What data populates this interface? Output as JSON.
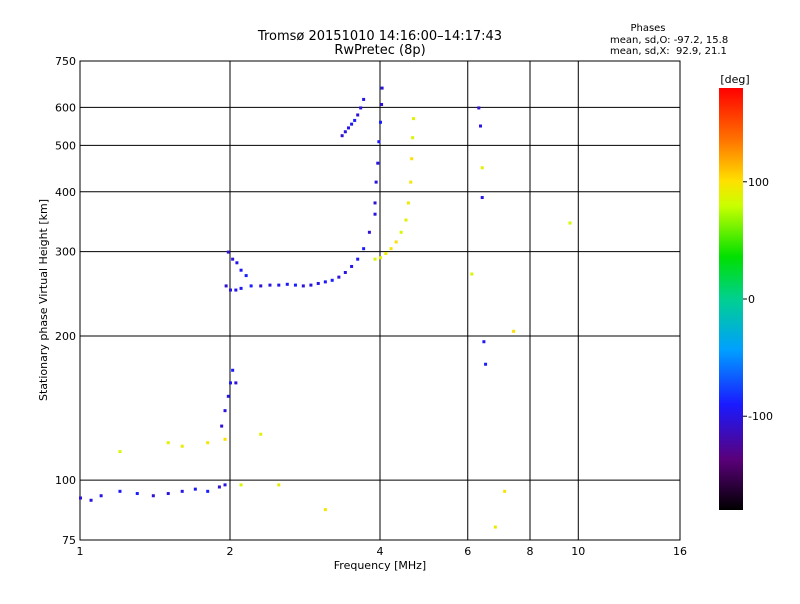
{
  "chart_data": {
    "type": "scatter",
    "title": "Tromsø 20151010 14:16:00–14:17:43",
    "subtitle": "RwPretec (8p)",
    "xlabel": "Frequency [MHz]",
    "ylabel": "Stationary phase Virtual Height [km]",
    "x_scale": "log",
    "y_scale": "log",
    "xlim": [
      1,
      16
    ],
    "ylim": [
      75,
      750
    ],
    "x_ticks": [
      1,
      2,
      4,
      6,
      8,
      10,
      16
    ],
    "y_ticks": [
      75,
      100,
      200,
      300,
      400,
      500,
      600,
      750
    ],
    "grid": true,
    "stats": {
      "heading": "Phases",
      "line_o": "mean, sd,O: -97.2, 15.8",
      "line_x": "mean, sd,X:  92.9, 21.1"
    },
    "colorbar": {
      "label": "[deg]",
      "range": [
        -180,
        180
      ],
      "ticks": [
        100,
        0,
        -100
      ],
      "colormap": "rainbow"
    },
    "series": [
      {
        "mode": "O",
        "phase_deg": -97,
        "traces": [
          {
            "x": [
              1.0,
              1.05,
              1.1,
              1.2,
              1.3,
              1.4,
              1.5,
              1.6,
              1.7,
              1.8,
              1.9,
              1.95
            ],
            "y": [
              92,
              91,
              93,
              95,
              94,
              93,
              94,
              95,
              96,
              95,
              97,
              98
            ]
          },
          {
            "x": [
              1.92,
              1.95,
              1.98,
              2.0,
              2.02,
              2.05
            ],
            "y": [
              130,
              140,
              150,
              160,
              170,
              160
            ]
          },
          {
            "x": [
              1.96,
              2.0,
              2.05,
              2.1,
              2.2,
              2.3,
              2.4,
              2.5,
              2.6,
              2.7,
              2.8,
              2.9,
              3.0,
              3.1,
              3.2,
              3.3,
              3.4,
              3.5,
              3.6,
              3.7,
              3.8,
              3.9
            ],
            "y": [
              255,
              250,
              250,
              252,
              255,
              255,
              256,
              256,
              257,
              256,
              255,
              256,
              258,
              260,
              262,
              266,
              272,
              280,
              290,
              305,
              330,
              360
            ]
          },
          {
            "x": [
              1.98,
              2.02,
              2.06,
              2.1,
              2.15
            ],
            "y": [
              300,
              290,
              285,
              275,
              268
            ]
          },
          {
            "x": [
              3.9,
              3.92,
              3.95,
              3.97,
              4.0,
              4.02,
              4.03
            ],
            "y": [
              380,
              420,
              460,
              510,
              560,
              610,
              660
            ]
          },
          {
            "x": [
              3.35,
              3.4,
              3.45,
              3.5,
              3.55,
              3.6,
              3.65,
              3.7
            ],
            "y": [
              525,
              535,
              545,
              555,
              565,
              580,
              600,
              625
            ]
          },
          {
            "x": [
              6.3,
              6.35,
              6.4,
              6.45,
              6.5
            ],
            "y": [
              600,
              550,
              390,
              195,
              175
            ]
          }
        ]
      },
      {
        "mode": "X",
        "phase_deg": 93,
        "traces": [
          {
            "x": [
              3.9,
              4.0,
              4.1,
              4.2,
              4.3,
              4.4,
              4.5,
              4.55,
              4.6,
              4.62,
              4.64,
              4.66
            ],
            "y": [
              290,
              292,
              298,
              305,
              315,
              330,
              350,
              380,
              420,
              470,
              520,
              570
            ]
          },
          {
            "x": [
              1.2,
              1.5,
              1.6,
              1.8,
              1.95,
              2.1,
              2.3,
              2.5,
              3.1
            ],
            "y": [
              115,
              120,
              118,
              120,
              122,
              98,
              125,
              98,
              87
            ]
          },
          {
            "x": [
              6.1,
              6.4,
              6.8,
              7.1,
              7.4,
              9.6
            ],
            "y": [
              270,
              450,
              80,
              95,
              205,
              345
            ]
          }
        ]
      }
    ]
  }
}
